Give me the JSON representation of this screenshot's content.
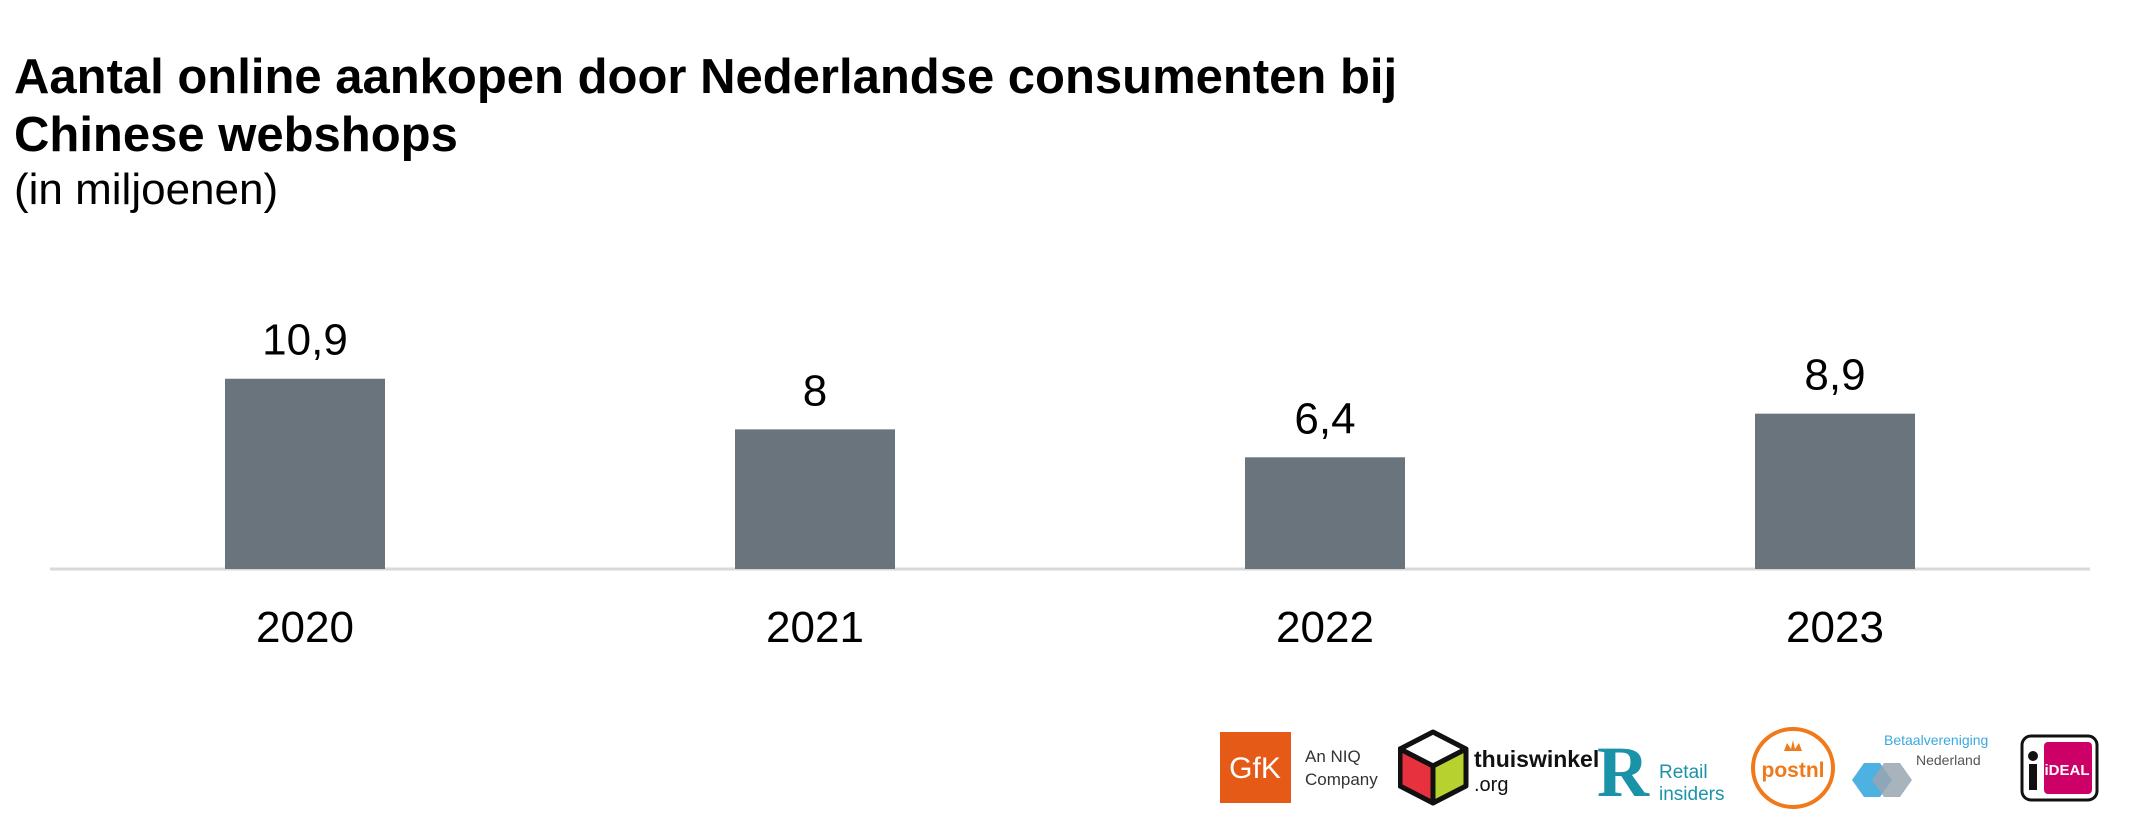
{
  "title": "Aantal online aankopen door Nederlandse consumenten bij Chinese webshops",
  "subtitle": "(in miljoenen)",
  "chart_data": {
    "type": "bar",
    "categories": [
      "2020",
      "2021",
      "2022",
      "2023"
    ],
    "values": [
      10.9,
      8,
      6.4,
      8.9
    ],
    "value_labels": [
      "10,9",
      "8",
      "6,4",
      "8,9"
    ],
    "title": "Aantal online aankopen door Nederlandse consumenten bij Chinese webshops",
    "subtitle": "(in miljoenen)",
    "xlabel": "",
    "ylabel": "",
    "ylim": [
      0,
      11
    ],
    "grid": false,
    "legend": "none",
    "bar_color": "#6a747c"
  },
  "logos": {
    "gfk": {
      "mark": "GfK",
      "tagline_1": "An NIQ",
      "tagline_2": "Company",
      "color": "#e55a16"
    },
    "thuiswinkel": {
      "name": "thuiswinkel",
      "suffix": ".org"
    },
    "retail_insiders": {
      "mark": "R",
      "line_1": "Retail",
      "line_2": "insiders",
      "color": "#1a93a8"
    },
    "postnl": {
      "name": "postnl",
      "color": "#f07a1a"
    },
    "betaalvereniging": {
      "line_1": "Betaalvereniging",
      "line_2": "Nederland",
      "color": "#3aa9de"
    },
    "ideal": {
      "name": "iDEAL",
      "color": "#cc0066"
    }
  }
}
